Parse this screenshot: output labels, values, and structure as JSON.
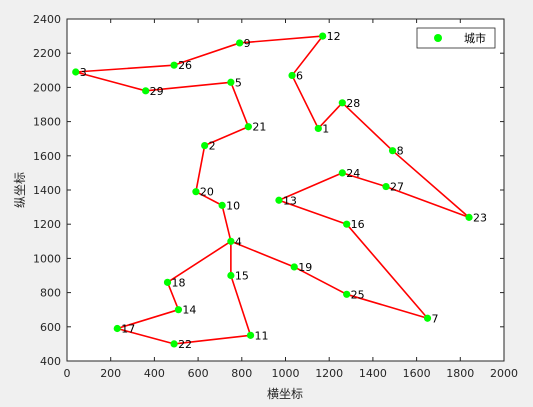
{
  "chart_data": {
    "type": "scatter",
    "xlabel": "横坐标",
    "ylabel": "纵坐标",
    "xlim": [
      0,
      2000
    ],
    "ylim": [
      400,
      2400
    ],
    "xticks": [
      0,
      200,
      400,
      600,
      800,
      1000,
      1200,
      1400,
      1600,
      1800,
      2000
    ],
    "yticks": [
      400,
      600,
      800,
      1000,
      1200,
      1400,
      1600,
      1800,
      2000,
      2200,
      2400
    ],
    "grid": false,
    "legend_position": "top-right",
    "legend_label": "城市",
    "marker_color": "#00ff00",
    "line_color": "#ff0000",
    "points": [
      {
        "id": "1",
        "x": 1150,
        "y": 1760
      },
      {
        "id": "2",
        "x": 630,
        "y": 1660
      },
      {
        "id": "3",
        "x": 40,
        "y": 2090
      },
      {
        "id": "4",
        "x": 750,
        "y": 1100
      },
      {
        "id": "5",
        "x": 750,
        "y": 2030
      },
      {
        "id": "6",
        "x": 1030,
        "y": 2070
      },
      {
        "id": "7",
        "x": 1650,
        "y": 650
      },
      {
        "id": "8",
        "x": 1490,
        "y": 1630
      },
      {
        "id": "9",
        "x": 790,
        "y": 2260
      },
      {
        "id": "10",
        "x": 710,
        "y": 1310
      },
      {
        "id": "11",
        "x": 840,
        "y": 550
      },
      {
        "id": "12",
        "x": 1170,
        "y": 2300
      },
      {
        "id": "13",
        "x": 970,
        "y": 1340
      },
      {
        "id": "14",
        "x": 510,
        "y": 700
      },
      {
        "id": "15",
        "x": 750,
        "y": 900
      },
      {
        "id": "16",
        "x": 1280,
        "y": 1200
      },
      {
        "id": "17",
        "x": 230,
        "y": 590
      },
      {
        "id": "18",
        "x": 460,
        "y": 860
      },
      {
        "id": "19",
        "x": 1040,
        "y": 950
      },
      {
        "id": "20",
        "x": 590,
        "y": 1390
      },
      {
        "id": "21",
        "x": 830,
        "y": 1770
      },
      {
        "id": "22",
        "x": 490,
        "y": 500
      },
      {
        "id": "23",
        "x": 1840,
        "y": 1240
      },
      {
        "id": "24",
        "x": 1260,
        "y": 1500
      },
      {
        "id": "25",
        "x": 1280,
        "y": 790
      },
      {
        "id": "26",
        "x": 490,
        "y": 2130
      },
      {
        "id": "27",
        "x": 1460,
        "y": 1420
      },
      {
        "id": "28",
        "x": 1260,
        "y": 1910
      },
      {
        "id": "29",
        "x": 360,
        "y": 1980
      }
    ],
    "route": [
      "1",
      "28",
      "8",
      "23",
      "27",
      "24",
      "13",
      "16",
      "7",
      "25",
      "19",
      "4",
      "15",
      "11",
      "22",
      "17",
      "14",
      "18",
      "4",
      "10",
      "20",
      "2",
      "21",
      "5",
      "29",
      "3",
      "26",
      "9",
      "12",
      "6",
      "1"
    ]
  }
}
